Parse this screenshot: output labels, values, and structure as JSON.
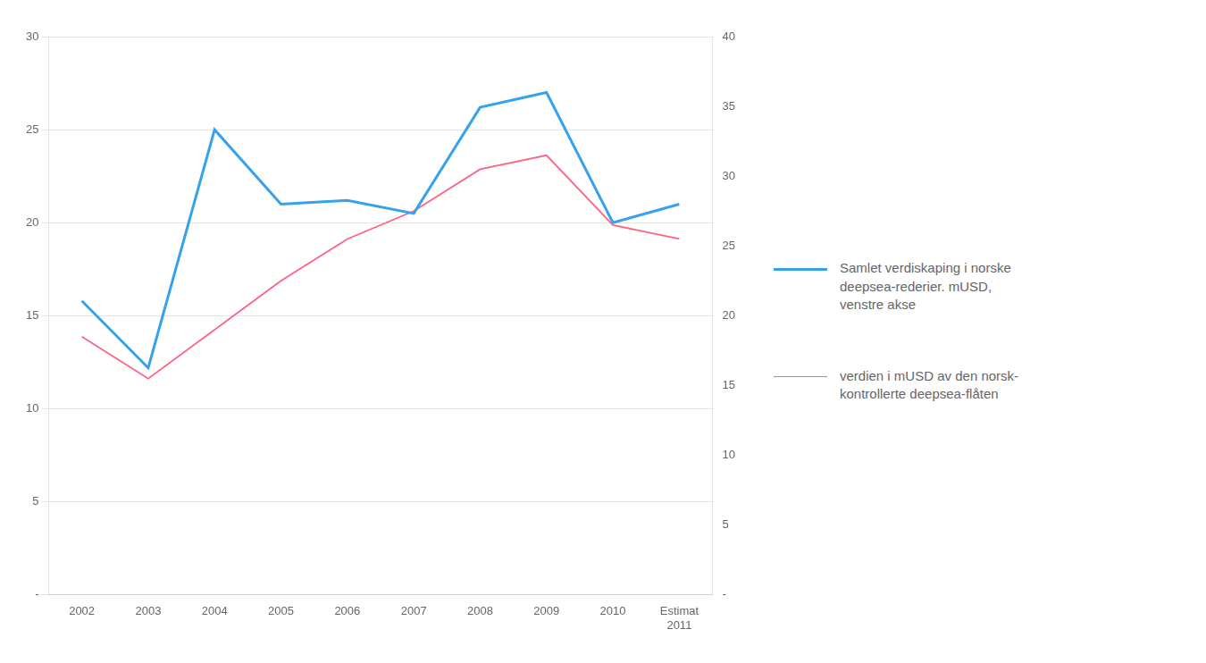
{
  "chart_data": {
    "type": "line",
    "categories": [
      "2002",
      "2003",
      "2004",
      "2005",
      "2006",
      "2007",
      "2008",
      "2009",
      "2010",
      "Estimat\n2011"
    ],
    "series": [
      {
        "name": "Samlet verdiskaping i norske\ndeepsea-rederier. mUSD,\nvenstre akse",
        "values": [
          15.8,
          12.2,
          25.0,
          21.0,
          21.2,
          20.5,
          26.2,
          27.0,
          20.0,
          21.0
        ]
      },
      {
        "name": "verdien i mUSD av den norsk-\nkontrollerte deepsea-flåten",
        "values": [
          18.5,
          15.5,
          19.0,
          22.5,
          25.5,
          27.5,
          30.5,
          31.5,
          26.5,
          25.5
        ],
        "axis": "y2"
      }
    ],
    "ylim": [
      0,
      30
    ],
    "yticks": [
      {
        "value": 0,
        "label": "-"
      },
      5,
      10,
      15,
      20,
      25,
      30
    ],
    "y2lim": [
      0,
      40
    ],
    "y2ticks": [
      {
        "value": 0,
        "label": "-"
      },
      5,
      10,
      15,
      20,
      25,
      30,
      35,
      40
    ],
    "grid": true,
    "legend": "right"
  }
}
